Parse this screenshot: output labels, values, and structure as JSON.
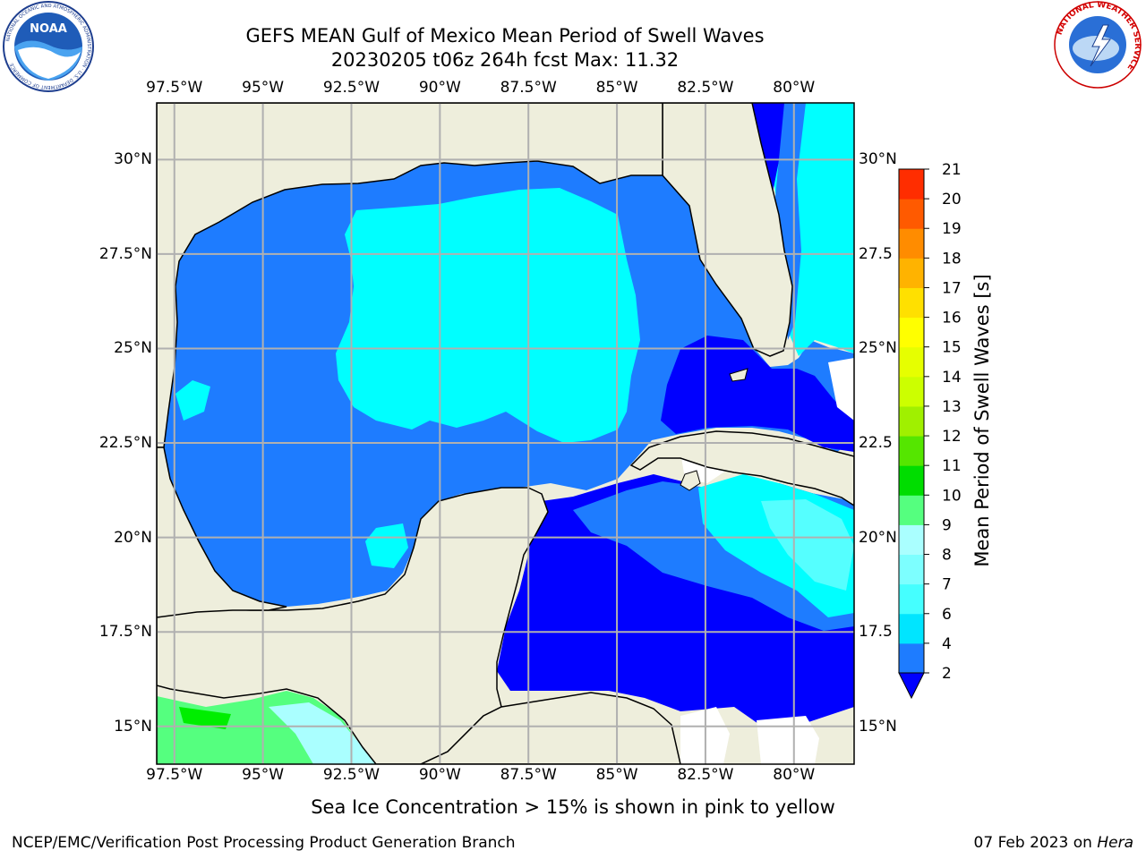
{
  "header": {
    "title_line1": "GEFS MEAN Gulf of Mexico Mean Period of Swell Waves",
    "title_line2": "20230205 t06z 264h fcst   Max: 11.32"
  },
  "logos": {
    "left": {
      "name": "NOAA",
      "ring_text": "NATIONAL OCEANIC AND ATMOSPHERIC ADMINISTRATION · U.S. DEPARTMENT OF COMMERCE"
    },
    "right": {
      "ring_text": "NATIONAL WEATHER SERVICE"
    }
  },
  "axes": {
    "lon_labels": [
      "97.5°W",
      "95°W",
      "92.5°W",
      "90°W",
      "87.5°W",
      "85°W",
      "82.5°W",
      "80°W"
    ],
    "lon_values": [
      -97.5,
      -95,
      -92.5,
      -90,
      -87.5,
      -85,
      -82.5,
      -80
    ],
    "lat_labels": [
      "30°N",
      "27.5°N",
      "25°N",
      "22.5°N",
      "20°N",
      "17.5°N",
      "15°N"
    ],
    "lat_labels_right": [
      "30°N",
      "27.5",
      "25°N",
      "22.5",
      "20°N",
      "17.5",
      "15°N"
    ],
    "lat_values": [
      30,
      27.5,
      25,
      22.5,
      20,
      17.5,
      15
    ],
    "lon_range": [
      -98,
      -78.3
    ],
    "lat_range": [
      14,
      31.5
    ],
    "grid": true
  },
  "colorbar": {
    "label": "Mean Period of Swell Waves [s]",
    "ticks": [
      "2",
      "4",
      "6",
      "7",
      "8",
      "9",
      "10",
      "11",
      "12",
      "13",
      "14",
      "15",
      "16",
      "17",
      "18",
      "19",
      "20",
      "21"
    ],
    "colors": [
      "#1e7cff",
      "#00e5ff",
      "#45ffff",
      "#7dffff",
      "#aaffff",
      "#55ff7f",
      "#00dd00",
      "#55e600",
      "#a0f000",
      "#ccff00",
      "#e6ff00",
      "#ffff00",
      "#ffe000",
      "#ffb300",
      "#ff8c00",
      "#ff5a00",
      "#ff2d00"
    ],
    "extend_color": "#0000ff"
  },
  "colors": {
    "land": "#eeeedc",
    "ocean_2_4": "#1e7cff",
    "ocean_low": "#0000ff",
    "ocean_4_6": "#00ffff",
    "ocean_6_8": "#55ffff",
    "ocean_8_9": "#aaffff",
    "ocean_9_10": "#55ff7f",
    "ocean_10_11": "#00ee00",
    "no_data": "#ffffff",
    "gridline": "#b0b0b0"
  },
  "footer": {
    "caption": "Sea Ice Concentration > 15% is shown in pink to yellow",
    "credit": "NCEP/EMC/Verification Post Processing Product Generation Branch",
    "date_text": "07 Feb 2023 on ",
    "host": "Hera"
  }
}
